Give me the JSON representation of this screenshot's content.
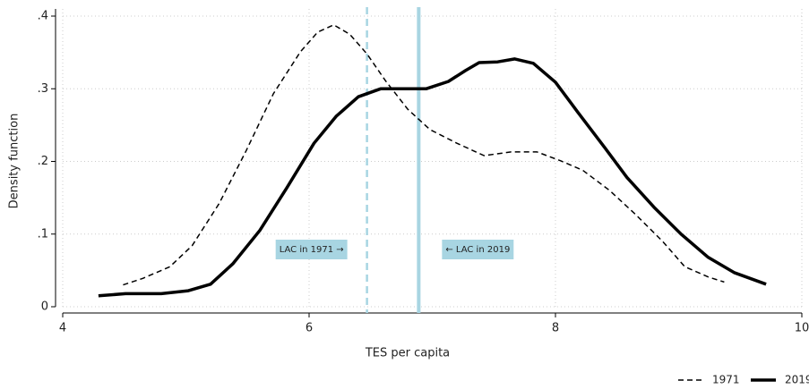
{
  "chart_data": {
    "type": "line",
    "xlabel": "TES per capita",
    "ylabel": "Density function",
    "xlim": [
      4,
      10
    ],
    "ylim": [
      0,
      0.4
    ],
    "xticks": [
      4,
      6,
      8,
      10
    ],
    "yticks": [
      0,
      {
        "value": 0.1,
        "label": ".1"
      },
      {
        "value": 0.2,
        "label": ".2"
      },
      {
        "value": 0.3,
        "label": ".3"
      },
      {
        "value": 0.4,
        "label": ".4"
      }
    ],
    "grid": true,
    "legend": "bottom-right",
    "series": [
      {
        "name": "1971",
        "color": "#000000",
        "dashed": true,
        "x": [
          4.49,
          4.65,
          4.87,
          5.05,
          5.27,
          5.49,
          5.71,
          5.93,
          6.07,
          6.2,
          6.33,
          6.47,
          6.62,
          6.8,
          6.98,
          7.2,
          7.42,
          7.64,
          7.85,
          8.04,
          8.22,
          8.44,
          8.65,
          8.87,
          9.05,
          9.24,
          9.37
        ],
        "values": [
          0.03,
          0.039,
          0.055,
          0.084,
          0.142,
          0.215,
          0.293,
          0.351,
          0.378,
          0.388,
          0.375,
          0.348,
          0.311,
          0.272,
          0.244,
          0.225,
          0.208,
          0.213,
          0.213,
          0.201,
          0.188,
          0.16,
          0.127,
          0.09,
          0.055,
          0.041,
          0.034
        ]
      },
      {
        "name": "2019",
        "color": "#000000",
        "dashed": false,
        "x": [
          4.29,
          4.51,
          4.8,
          5.02,
          5.2,
          5.38,
          5.6,
          5.82,
          6.04,
          6.22,
          6.4,
          6.58,
          6.76,
          6.95,
          7.13,
          7.27,
          7.38,
          7.53,
          7.67,
          7.82,
          8.0,
          8.18,
          8.4,
          8.58,
          8.8,
          9.02,
          9.24,
          9.45,
          9.71
        ],
        "values": [
          0.015,
          0.018,
          0.018,
          0.022,
          0.031,
          0.059,
          0.105,
          0.164,
          0.225,
          0.262,
          0.289,
          0.3,
          0.3,
          0.3,
          0.31,
          0.325,
          0.336,
          0.337,
          0.341,
          0.335,
          0.309,
          0.268,
          0.219,
          0.178,
          0.137,
          0.1,
          0.068,
          0.047,
          0.031
        ]
      }
    ],
    "reference_lines": [
      {
        "x": 6.47,
        "label": "LAC in 1971 →",
        "color": "#a8d5e2",
        "dashed": true,
        "side": "left"
      },
      {
        "x": 6.89,
        "label": "← LAC in 2019",
        "color": "#a8d5e2",
        "dashed": false,
        "side": "right"
      }
    ]
  }
}
